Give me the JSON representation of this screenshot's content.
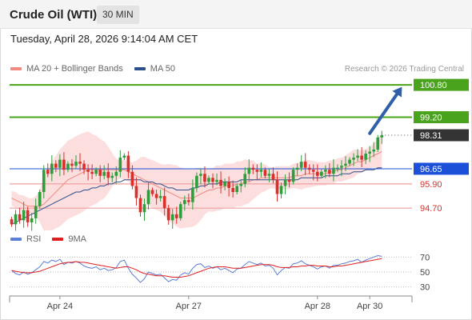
{
  "header": {
    "title": "Crude Oil (WTI)",
    "interval": "30 MIN",
    "datetime": "Tuesday, April 28, 2026 9:14:04 AM CET"
  },
  "legend_main": [
    {
      "label": "MA 20 + Bollinger Bands",
      "color": "#f08a80"
    },
    {
      "label": "MA 50",
      "color": "#2d4f8a"
    }
  ],
  "legend_rsi": [
    {
      "label": "RSI",
      "color": "#5a7fd6"
    },
    {
      "label": "9MA",
      "color": "#e02020"
    }
  ],
  "copyright": "Research © 2026 Trading Central",
  "colors": {
    "up": "#2e9e3c",
    "down": "#d9302c",
    "resistance": "#4aa31c",
    "support": "#f2a0a0",
    "pivot": "#1c50d8",
    "band": "#fbd3d3",
    "ma20": "#f08a80",
    "ma50": "#2d4f8a",
    "arrow": "#2e5fa8"
  },
  "chart_data": [
    {
      "type": "candlestick",
      "title": "",
      "ylim": [
        93.6,
        101.2
      ],
      "x_ticks": [
        {
          "label": "Apr 24",
          "index": 12
        },
        {
          "label": "Apr 27",
          "index": 44
        },
        {
          "label": "Apr 28",
          "index": 76
        },
        {
          "label": "Apr 30",
          "index": 89
        }
      ],
      "levels": [
        {
          "label": "100.80",
          "value": 100.8,
          "kind": "resistance"
        },
        {
          "label": "99.20",
          "value": 99.2,
          "kind": "resistance"
        },
        {
          "label": "98.31",
          "value": 98.31,
          "kind": "last"
        },
        {
          "label": "96.65",
          "value": 96.65,
          "kind": "pivot"
        },
        {
          "label": "95.90",
          "value": 95.9,
          "kind": "support"
        },
        {
          "label": "94.70",
          "value": 94.7,
          "kind": "support"
        }
      ],
      "target_arrow": {
        "from_index": 89,
        "from_value": 98.4,
        "to_index": 97,
        "to_value": 100.7
      },
      "series": [
        {
          "name": "Close",
          "values": [
            93.9,
            94.4,
            94.1,
            94.6,
            94.0,
            94.2,
            94.8,
            95.5,
            96.6,
            96.4,
            96.9,
            96.7,
            97.1,
            96.6,
            96.9,
            96.8,
            97.0,
            96.9,
            96.6,
            96.5,
            96.4,
            96.6,
            96.3,
            96.5,
            96.2,
            96.3,
            96.5,
            97.2,
            97.3,
            96.5,
            95.8,
            95.2,
            94.5,
            94.9,
            95.6,
            95.4,
            95.2,
            95.3,
            94.7,
            94.1,
            94.4,
            94.2,
            94.9,
            95.1,
            95.0,
            95.7,
            96.3,
            96.4,
            96.0,
            96.2,
            96.0,
            96.1,
            95.8,
            96.0,
            95.7,
            95.5,
            95.8,
            95.9,
            96.4,
            96.7,
            96.6,
            96.5,
            96.6,
            96.3,
            96.4,
            96.1,
            95.4,
            95.8,
            96.1,
            96.0,
            96.6,
            96.7,
            97.0,
            96.7,
            96.6,
            96.5,
            96.3,
            96.5,
            96.6,
            96.4,
            96.7,
            96.7,
            96.8,
            96.9,
            97.1,
            97.2,
            97.3,
            97.1,
            97.4,
            97.5,
            97.6,
            98.2,
            98.31
          ]
        },
        {
          "name": "MA 20",
          "values": [
            95.2,
            95.1,
            95.0,
            94.9,
            94.8,
            94.8,
            94.8,
            94.8,
            94.9,
            95.1,
            95.3,
            95.5,
            95.7,
            95.9,
            96.1,
            96.2,
            96.3,
            96.4,
            96.5,
            96.6,
            96.6,
            96.6,
            96.6,
            96.6,
            96.6,
            96.6,
            96.6,
            96.6,
            96.6,
            96.5,
            96.4,
            96.3,
            96.2,
            96.1,
            96.0,
            95.9,
            95.8,
            95.7,
            95.6,
            95.5,
            95.4,
            95.3,
            95.2,
            95.2,
            95.2,
            95.2,
            95.3,
            95.4,
            95.5,
            95.6,
            95.6,
            95.7,
            95.7,
            95.8,
            95.8,
            95.8,
            95.9,
            95.9,
            96.0,
            96.0,
            96.1,
            96.1,
            96.2,
            96.2,
            96.2,
            96.2,
            96.2,
            96.2,
            96.2,
            96.2,
            96.3,
            96.3,
            96.3,
            96.4,
            96.4,
            96.4,
            96.4,
            96.4,
            96.4,
            96.5,
            96.5,
            96.6,
            96.6,
            96.7,
            96.8,
            96.9,
            97.0,
            97.0,
            97.1,
            97.2,
            97.3,
            97.4,
            97.5
          ]
        },
        {
          "name": "MA 50",
          "values": [
            93.9,
            94.0,
            94.1,
            94.2,
            94.3,
            94.4,
            94.5,
            94.6,
            94.7,
            94.8,
            94.9,
            95.0,
            95.1,
            95.2,
            95.3,
            95.4,
            95.5,
            95.5,
            95.6,
            95.6,
            95.7,
            95.7,
            95.8,
            95.8,
            95.9,
            95.9,
            96.0,
            96.0,
            96.1,
            96.1,
            96.1,
            96.1,
            96.1,
            96.0,
            96.0,
            96.0,
            95.9,
            95.9,
            95.8,
            95.7,
            95.7,
            95.6,
            95.6,
            95.6,
            95.6,
            95.7,
            95.7,
            95.8,
            95.8,
            95.9,
            95.9,
            95.9,
            96.0,
            96.0,
            96.0,
            96.0,
            96.0,
            96.1,
            96.1,
            96.1,
            96.1,
            96.1,
            96.1,
            96.1,
            96.1,
            96.1,
            96.1,
            96.1,
            96.1,
            96.1,
            96.1,
            96.1,
            96.2,
            96.2,
            96.2,
            96.2,
            96.2,
            96.2,
            96.3,
            96.3,
            96.3,
            96.3,
            96.4,
            96.4,
            96.4,
            96.5,
            96.5,
            96.5,
            96.6,
            96.6,
            96.6,
            96.7,
            96.7
          ]
        }
      ]
    },
    {
      "type": "line",
      "title": "",
      "ylim": [
        20,
        80
      ],
      "y_ticks": [
        70,
        50,
        30
      ],
      "series": [
        {
          "name": "RSI",
          "values": [
            52,
            48,
            46,
            50,
            47,
            49,
            53,
            57,
            64,
            62,
            66,
            64,
            67,
            60,
            63,
            62,
            64,
            62,
            58,
            56,
            55,
            57,
            53,
            55,
            52,
            53,
            56,
            64,
            66,
            55,
            47,
            42,
            36,
            41,
            50,
            48,
            46,
            47,
            42,
            37,
            40,
            39,
            46,
            49,
            47,
            55,
            60,
            61,
            56,
            58,
            55,
            57,
            53,
            55,
            52,
            49,
            54,
            55,
            60,
            64,
            62,
            60,
            62,
            58,
            59,
            55,
            46,
            52,
            56,
            55,
            61,
            62,
            65,
            61,
            59,
            57,
            54,
            57,
            58,
            55,
            59,
            59,
            61,
            62,
            64,
            65,
            67,
            63,
            66,
            68,
            70,
            72,
            71
          ]
        },
        {
          "name": "9MA",
          "values": [
            52,
            51,
            50,
            49,
            49,
            49,
            50,
            51,
            53,
            55,
            57,
            59,
            61,
            62,
            63,
            63,
            64,
            63,
            63,
            62,
            61,
            60,
            59,
            58,
            57,
            56,
            55,
            56,
            57,
            57,
            55,
            53,
            50,
            48,
            47,
            46,
            45,
            45,
            45,
            44,
            43,
            43,
            43,
            44,
            45,
            47,
            49,
            51,
            53,
            55,
            56,
            57,
            57,
            57,
            56,
            55,
            55,
            55,
            56,
            57,
            58,
            59,
            60,
            60,
            60,
            59,
            57,
            56,
            56,
            56,
            57,
            57,
            58,
            58,
            59,
            59,
            58,
            58,
            58,
            57,
            57,
            58,
            58,
            59,
            60,
            61,
            62,
            63,
            64,
            65,
            66,
            67,
            68
          ]
        }
      ]
    }
  ]
}
